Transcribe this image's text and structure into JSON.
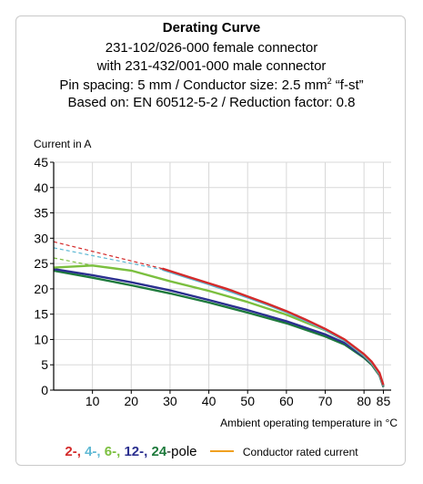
{
  "header": {
    "title": "Derating Curve",
    "line1": "231-102/026-000 female connector",
    "line2": "with 231-432/001-000 male connector",
    "line3_pre": "Pin spacing: 5 mm / Conductor size: 2.5 mm",
    "line3_sup": "2",
    "line3_post": " “f-st”",
    "line4": "Based on: EN 60512-5-2 / Reduction factor: 0.8"
  },
  "legend": {
    "p2": "2-,",
    "p4": "4-,",
    "p6": "6-,",
    "p12": "12-,",
    "p24": "24",
    "pole_suffix": "-pole",
    "rated_label": "Conductor rated current"
  },
  "colors": {
    "p2": "#d42a2a",
    "p4": "#5fb9d4",
    "p6": "#7bbf3f",
    "p12": "#2b2f8f",
    "p24": "#1e7a3c",
    "rated": "#f0a020",
    "grid": "#d8d8d8",
    "axis": "#000000",
    "frame": "#c9c9c9"
  },
  "chart_data": {
    "type": "line",
    "ylabel": "Current in A",
    "xlabel": "Ambient operating temperature in °C",
    "xlim": [
      0,
      87
    ],
    "ylim": [
      0,
      45
    ],
    "x_ticks": [
      10,
      20,
      30,
      40,
      50,
      60,
      70,
      80,
      85
    ],
    "y_ticks": [
      0,
      5,
      10,
      15,
      20,
      25,
      30,
      35,
      40,
      45
    ],
    "grid": true,
    "series": [
      {
        "name": "2-pole",
        "color_key": "p2",
        "x": [
          28,
          35,
          40,
          45,
          50,
          55,
          60,
          65,
          70,
          75,
          80,
          82,
          84,
          85
        ],
        "y": [
          24,
          22.3,
          21.1,
          19.9,
          18.5,
          17.1,
          15.6,
          13.9,
          12.1,
          10.0,
          7.1,
          5.6,
          3.4,
          1.0
        ],
        "ext_x": [
          0,
          28
        ],
        "ext_y": [
          29.3,
          24
        ]
      },
      {
        "name": "4-pole",
        "color_key": "p4",
        "x": [
          28,
          35,
          40,
          45,
          50,
          55,
          60,
          65,
          70,
          75,
          80,
          82,
          84,
          85
        ],
        "y": [
          23.8,
          22.1,
          20.9,
          19.6,
          18.3,
          16.9,
          15.4,
          13.7,
          11.9,
          9.8,
          6.9,
          5.4,
          3.2,
          0.9
        ],
        "ext_x": [
          0,
          28
        ],
        "ext_y": [
          28.1,
          23.8
        ]
      },
      {
        "name": "6-pole",
        "color_key": "p6",
        "x": [
          0,
          10,
          20,
          30,
          40,
          50,
          60,
          70,
          75,
          80,
          82,
          84,
          85
        ],
        "y": [
          24.2,
          24.6,
          23.6,
          21.5,
          19.6,
          17.4,
          14.9,
          11.8,
          9.8,
          6.8,
          5.3,
          3.1,
          0.8
        ],
        "ext_x": [
          0,
          10
        ],
        "ext_y": [
          26.1,
          24.6
        ]
      },
      {
        "name": "12-pole",
        "color_key": "p12",
        "x": [
          0,
          10,
          20,
          30,
          40,
          50,
          60,
          70,
          75,
          80,
          82,
          84,
          85
        ],
        "y": [
          23.9,
          22.7,
          21.3,
          19.7,
          17.8,
          15.8,
          13.6,
          11.0,
          9.3,
          6.6,
          5.2,
          3.0,
          0.7
        ]
      },
      {
        "name": "24-pole",
        "color_key": "p24",
        "x": [
          0,
          10,
          20,
          30,
          40,
          50,
          60,
          70,
          75,
          80,
          82,
          84,
          85
        ],
        "y": [
          23.6,
          22.2,
          20.7,
          19.1,
          17.3,
          15.3,
          13.2,
          10.6,
          9.0,
          6.4,
          5.0,
          2.9,
          0.6
        ]
      }
    ]
  }
}
